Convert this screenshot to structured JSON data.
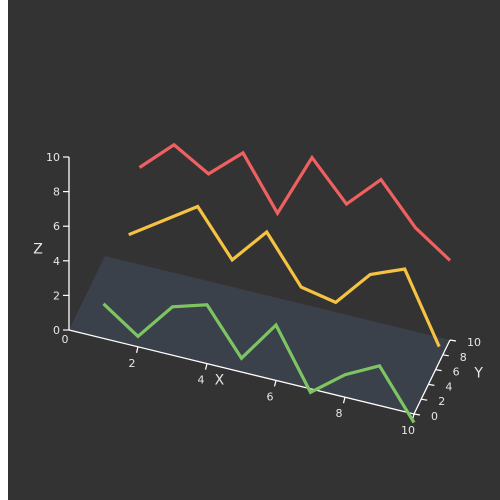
{
  "chart_data": {
    "type": "line3d",
    "title": "",
    "axes": {
      "x": {
        "label": "X",
        "range": [
          0,
          10
        ],
        "ticks": [
          2,
          4,
          6,
          8,
          10
        ]
      },
      "y": {
        "label": "Y",
        "range": [
          0,
          10
        ],
        "ticks": [
          0,
          2,
          4,
          6,
          8,
          10
        ]
      },
      "z": {
        "label": "Z",
        "range": [
          0,
          10
        ],
        "ticks": [
          0,
          2,
          4,
          6,
          8,
          10
        ]
      }
    },
    "colors": {
      "background": "#333333",
      "axis": "#ffffff",
      "floor": "#3d4450",
      "ticks": "#e6e6e6"
    },
    "series": [
      {
        "color": "#f06060",
        "y": 10,
        "x": [
          1,
          2,
          3,
          4,
          5,
          6,
          7,
          8,
          9,
          10
        ],
        "z": [
          5.6,
          7.4,
          6.2,
          7.9,
          4.9,
          8.6,
          6.4,
          8.3,
          6.0,
          4.6
        ]
      },
      {
        "color": "#f5c242",
        "y": 7,
        "x": [
          1,
          2,
          3,
          4,
          5,
          6,
          7,
          8,
          9,
          10
        ],
        "z": [
          3.0,
          4.3,
          5.6,
          3.0,
          5.1,
          2.4,
          2.0,
          4.1,
          4.9,
          0.9
        ]
      },
      {
        "color": "#7dc562",
        "y": 0,
        "x": [
          1,
          2,
          3,
          4,
          5,
          6,
          7,
          8,
          9,
          10
        ],
        "z": [
          2.0,
          0.6,
          2.8,
          3.4,
          0.8,
          3.2,
          -0.2,
          1.3,
          2.3,
          -0.5
        ]
      }
    ]
  }
}
